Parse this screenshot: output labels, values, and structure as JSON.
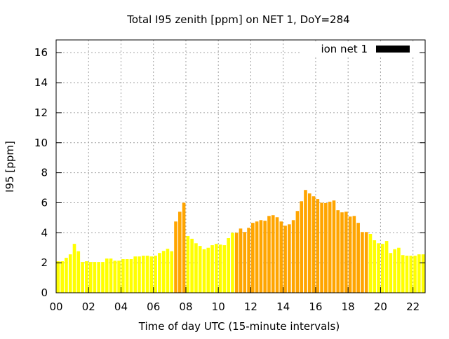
{
  "chart_data": {
    "type": "bar",
    "title": "Total I95 zenith [ppm] on NET 1, DoY=284",
    "xlabel": "Time of day UTC (15-minute intervals)",
    "ylabel": "I95 [ppm]",
    "xlim": [
      0,
      22.75
    ],
    "ylim": [
      0,
      16.85
    ],
    "grid": true,
    "legend": {
      "label": "ion net 1",
      "placement": "top-right"
    },
    "x_ticks": [
      "00",
      "02",
      "04",
      "06",
      "08",
      "10",
      "12",
      "14",
      "16",
      "18",
      "20",
      "22"
    ],
    "y_ticks": [
      "0",
      "2",
      "4",
      "6",
      "8",
      "10",
      "12",
      "14",
      "16"
    ],
    "interval_hours": 0.25,
    "colors": {
      "low": "#ffff00",
      "high": "#ffa500"
    },
    "values": [
      2.1,
      2.1,
      2.33,
      2.56,
      3.26,
      2.77,
      2.05,
      2.1,
      2.05,
      2.05,
      2.05,
      2.05,
      2.28,
      2.28,
      2.14,
      2.14,
      2.24,
      2.24,
      2.24,
      2.42,
      2.42,
      2.47,
      2.47,
      2.42,
      2.47,
      2.65,
      2.79,
      2.93,
      2.77,
      4.75,
      5.4,
      6.0,
      3.78,
      3.6,
      3.3,
      3.12,
      2.9,
      3.0,
      3.17,
      3.26,
      3.21,
      3.17,
      3.64,
      4.0,
      4.0,
      4.28,
      4.05,
      4.33,
      4.66,
      4.75,
      4.84,
      4.8,
      5.12,
      5.17,
      5.03,
      4.75,
      4.47,
      4.56,
      4.84,
      5.45,
      6.1,
      6.85,
      6.62,
      6.43,
      6.25,
      6.0,
      5.98,
      6.07,
      6.15,
      5.5,
      5.36,
      5.4,
      5.08,
      5.12,
      4.66,
      4.05,
      4.05,
      3.92,
      3.5,
      3.3,
      3.26,
      3.45,
      2.65,
      2.9,
      3.0,
      2.51,
      2.47,
      2.47,
      2.47,
      2.56,
      2.56,
      2.51
    ],
    "high_flags": [
      0,
      0,
      0,
      0,
      0,
      0,
      0,
      0,
      0,
      0,
      0,
      0,
      0,
      0,
      0,
      0,
      0,
      0,
      0,
      0,
      0,
      0,
      0,
      0,
      0,
      0,
      0,
      0,
      0,
      1,
      1,
      1,
      0,
      0,
      0,
      0,
      0,
      0,
      0,
      0,
      0,
      0,
      0,
      0,
      1,
      1,
      1,
      1,
      1,
      1,
      1,
      1,
      1,
      1,
      1,
      1,
      1,
      1,
      1,
      1,
      1,
      1,
      1,
      1,
      1,
      1,
      1,
      1,
      1,
      1,
      1,
      1,
      1,
      1,
      1,
      1,
      1,
      0,
      0,
      0,
      0,
      0,
      0,
      0,
      0,
      0,
      0,
      0,
      0,
      0,
      0,
      0
    ]
  }
}
